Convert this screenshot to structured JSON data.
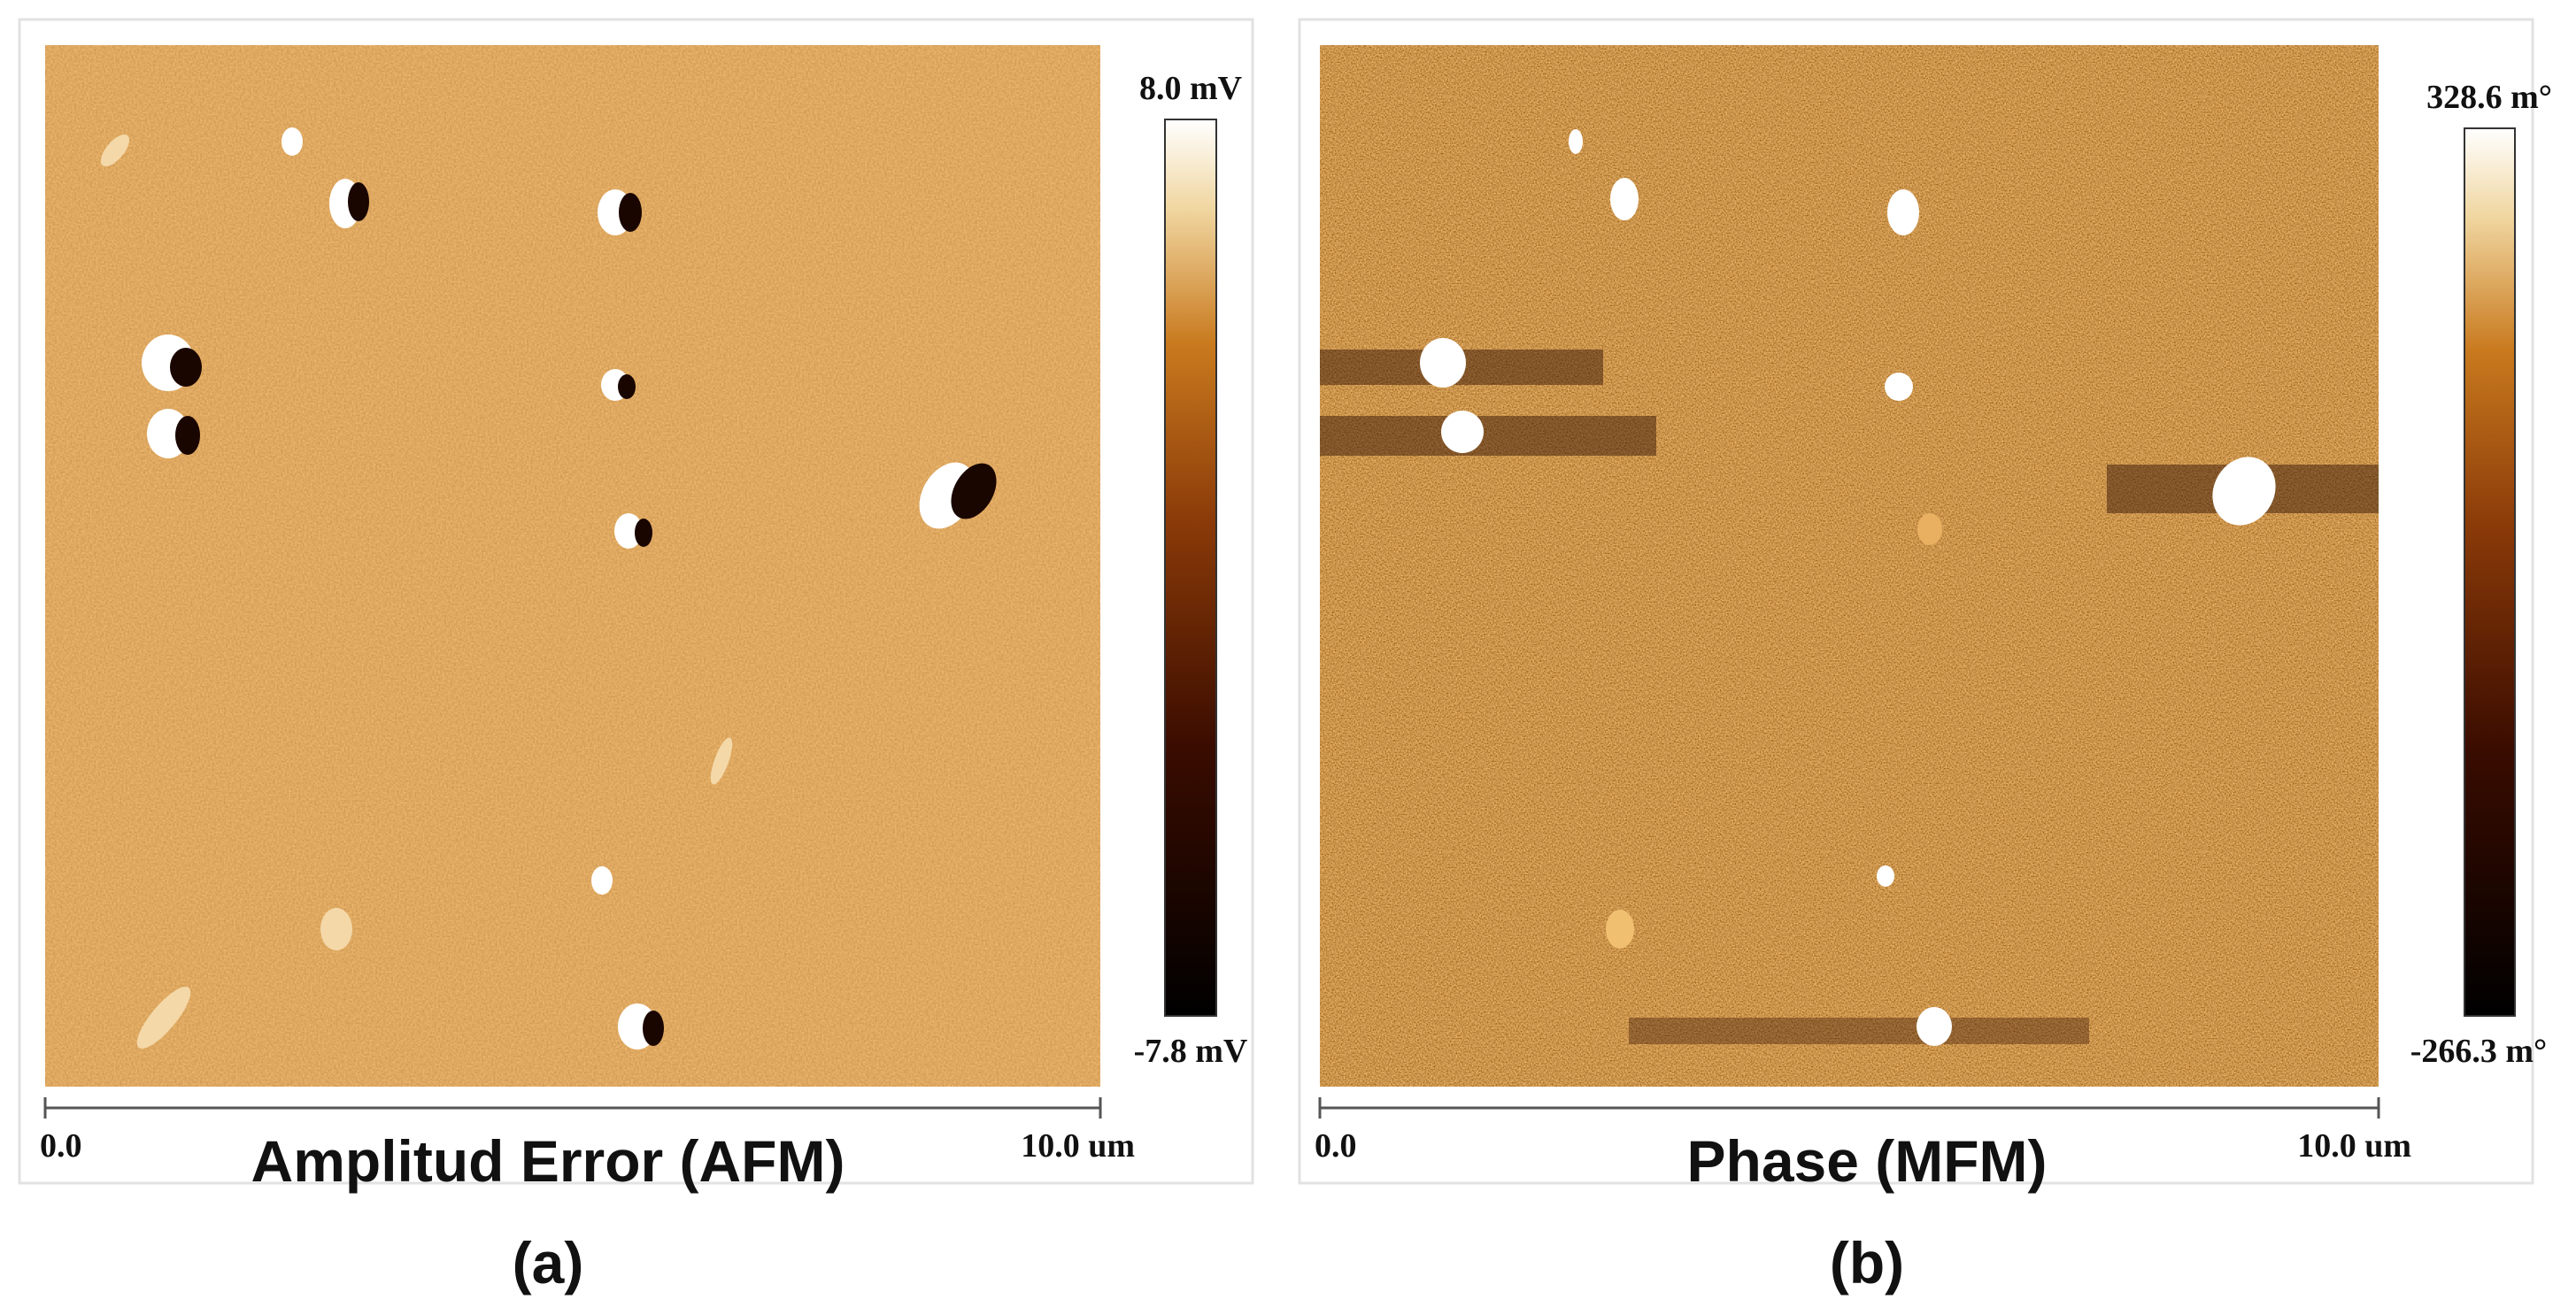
{
  "panels": [
    {
      "title": "Amplitud Error (AFM)",
      "label": "(a)",
      "colorbar": {
        "max": "8.0 mV",
        "min": "-7.8 mV"
      },
      "scale": {
        "start": "0.0",
        "end": "10.0 um"
      }
    },
    {
      "title": "Phase (MFM)",
      "label": "(b)",
      "colorbar": {
        "max": "328.6 m°",
        "min": "-266.3 m°"
      },
      "scale": {
        "start": "0.0",
        "end": "10.0 um"
      }
    }
  ]
}
